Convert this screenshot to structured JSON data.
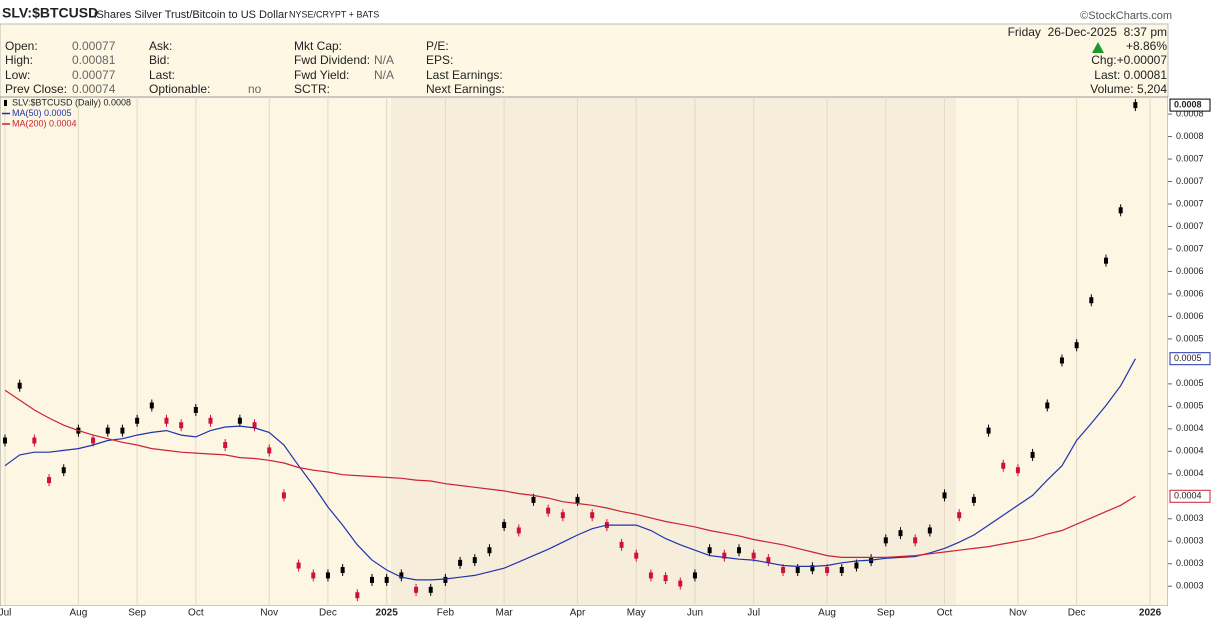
{
  "header": {
    "symbol": "SLV:$BTCUSD",
    "name": "iShares Silver Trust/Bitcoin to US Dollar",
    "exchange": "NYSE/CRYPT + BATS",
    "credit": "©StockCharts.com"
  },
  "quote": {
    "columns": [
      [
        {
          "label": "Open:",
          "value": "0.00077"
        },
        {
          "label": "High:",
          "value": "0.00081"
        },
        {
          "label": "Low:",
          "value": "0.00077"
        },
        {
          "label": "Prev Close:",
          "value": "0.00074"
        }
      ],
      [
        {
          "label": "Ask:"
        },
        {
          "label": "Bid:"
        },
        {
          "label": "Last:"
        },
        {
          "label": "Optionable:",
          "value": "no"
        }
      ],
      [
        {
          "label": "Mkt Cap:"
        },
        {
          "label": "Fwd Dividend:",
          "value": "N/A"
        },
        {
          "label": "Fwd Yield:",
          "value": "N/A"
        },
        {
          "label": "SCTR:"
        }
      ],
      [
        {
          "label": "P/E:"
        },
        {
          "label": "EPS:"
        },
        {
          "label": "Last Earnings:"
        },
        {
          "label": "Next Earnings:"
        }
      ]
    ],
    "date": "Friday  26-Dec-2025  8:37 pm",
    "change_pct": "+8.86%",
    "chg": "Chg:+0.00007",
    "last": "Last: 0.00081",
    "volume": "Volume: 5,204"
  },
  "chart_data": {
    "type": "candles",
    "categories": [
      "Jul",
      null,
      null,
      null,
      null,
      "Aug",
      null,
      null,
      null,
      "Sep",
      null,
      null,
      null,
      "Oct",
      null,
      null,
      null,
      null,
      "Nov",
      null,
      null,
      null,
      "Dec",
      null,
      null,
      null,
      "2025",
      null,
      null,
      null,
      "Feb",
      null,
      null,
      null,
      "Mar",
      null,
      null,
      null,
      null,
      "Apr",
      null,
      null,
      null,
      "May",
      null,
      null,
      null,
      "Jun",
      null,
      null,
      null,
      "Jul",
      null,
      null,
      null,
      null,
      "Aug",
      null,
      null,
      null,
      "Sep",
      null,
      null,
      null,
      "Oct",
      null,
      null,
      null,
      null,
      "Nov",
      null,
      null,
      null,
      "Dec",
      null,
      null,
      null,
      null,
      "2026"
    ],
    "series": [
      {
        "name": "SLV:$BTCUSD (Daily) 0.0008",
        "last_label": "0.0008",
        "color": "#000000",
        "down_color": "#d0103a",
        "values": [
          0.000437,
          0.000498,
          0.000437,
          0.000393,
          0.000404,
          0.000448,
          0.000437,
          0.000448,
          0.000448,
          0.000459,
          0.000476,
          0.000459,
          0.000454,
          0.000471,
          0.000459,
          0.000432,
          0.000459,
          0.000454,
          0.000426,
          0.000376,
          0.000298,
          0.000287,
          0.000287,
          0.000293,
          0.000265,
          0.000282,
          0.000282,
          0.000287,
          0.000271,
          0.000271,
          0.000282,
          0.000301,
          0.000304,
          0.000315,
          0.000343,
          0.000337,
          0.000371,
          0.000359,
          0.000354,
          0.000371,
          0.000354,
          0.000343,
          0.000321,
          0.000309,
          0.000287,
          0.000284,
          0.000278,
          0.000287,
          0.000315,
          0.000309,
          0.000315,
          0.000309,
          0.000304,
          0.000293,
          0.000293,
          0.000295,
          0.000293,
          0.000293,
          0.000298,
          0.000304,
          0.000326,
          0.000334,
          0.000326,
          0.000337,
          0.000376,
          0.000354,
          0.000371,
          0.000448,
          0.000409,
          0.000404,
          0.000421,
          0.000476,
          0.000526,
          0.000543,
          0.000593,
          0.000637,
          0.000693,
          0.00081,
          null
        ]
      },
      {
        "name": "MA(50) 0.0005",
        "last_label": "0.0005",
        "color": "#2233aa",
        "values": [
          0.000409,
          0.000421,
          0.000424,
          0.000424,
          0.000426,
          0.000428,
          0.000432,
          0.000437,
          0.000439,
          0.000443,
          0.000446,
          0.000448,
          0.000443,
          0.000441,
          0.000448,
          0.000452,
          0.000453,
          0.000451,
          0.000446,
          0.000432,
          0.000409,
          0.000387,
          0.000363,
          0.000343,
          0.000321,
          0.000304,
          0.000293,
          0.000285,
          0.000282,
          0.000282,
          0.000283,
          0.000285,
          0.000287,
          0.000291,
          0.000295,
          0.000302,
          0.000309,
          0.000316,
          0.000324,
          0.000332,
          0.000339,
          0.000343,
          0.000343,
          0.000343,
          0.000337,
          0.000328,
          0.000321,
          0.000315,
          0.000309,
          0.000307,
          0.000305,
          0.000304,
          0.000301,
          0.000298,
          0.000297,
          0.000297,
          0.000298,
          0.000301,
          0.000303,
          0.000304,
          0.000306,
          0.000307,
          0.000308,
          0.000312,
          0.000317,
          0.000324,
          0.000332,
          0.000343,
          0.000354,
          0.000365,
          0.000376,
          0.000393,
          0.000409,
          0.000437,
          0.000456,
          0.000476,
          0.000498,
          0.000528,
          null
        ]
      },
      {
        "name": "MA(200) 0.0004",
        "last_label": "0.0004",
        "color": "#cc2233",
        "values": [
          0.000493,
          0.000482,
          0.000471,
          0.000462,
          0.000454,
          0.000448,
          0.000443,
          0.000439,
          0.000435,
          0.000432,
          0.000428,
          0.000426,
          0.000424,
          0.000423,
          0.000422,
          0.000421,
          0.000418,
          0.000417,
          0.000415,
          0.000412,
          0.000407,
          0.000404,
          0.000402,
          0.000399,
          0.000398,
          0.000397,
          0.000396,
          0.000395,
          0.000393,
          0.000392,
          0.000389,
          0.000387,
          0.000385,
          0.000383,
          0.000381,
          0.000378,
          0.000376,
          0.000373,
          0.000369,
          0.000367,
          0.000365,
          0.000362,
          0.000358,
          0.000355,
          0.000351,
          0.000347,
          0.000344,
          0.000341,
          0.000337,
          0.000334,
          0.000331,
          0.000327,
          0.000324,
          0.000321,
          0.000317,
          0.000313,
          0.000309,
          0.000307,
          0.000307,
          0.000307,
          0.000307,
          0.000308,
          0.000309,
          0.000311,
          0.000313,
          0.000315,
          0.000317,
          0.000319,
          0.000322,
          0.000325,
          0.000328,
          0.000333,
          0.000337,
          0.000344,
          0.000351,
          0.000358,
          0.000365,
          0.000375,
          null
        ]
      }
    ],
    "ylim": [
      0.000253,
      0.000819
    ],
    "yticks": [
      {
        "value": 0.000275,
        "label": "0.0003"
      },
      {
        "value": 0.0003,
        "label": "0.0003"
      },
      {
        "value": 0.000325,
        "label": "0.0003"
      },
      {
        "value": 0.00035,
        "label": "0.0003"
      },
      {
        "value": 0.0004,
        "label": "0.0004"
      },
      {
        "value": 0.000425,
        "label": "0.0004"
      },
      {
        "value": 0.00045,
        "label": "0.0004"
      },
      {
        "value": 0.000475,
        "label": "0.0005"
      },
      {
        "value": 0.0005,
        "label": "0.0005"
      },
      {
        "value": 0.00055,
        "label": "0.0005"
      },
      {
        "value": 0.000575,
        "label": "0.0006"
      },
      {
        "value": 0.0006,
        "label": "0.0006"
      },
      {
        "value": 0.000625,
        "label": "0.0006"
      },
      {
        "value": 0.00065,
        "label": "0.0007"
      },
      {
        "value": 0.000675,
        "label": "0.0007"
      },
      {
        "value": 0.0007,
        "label": "0.0007"
      },
      {
        "value": 0.000725,
        "label": "0.0007"
      },
      {
        "value": 0.00075,
        "label": "0.0007"
      },
      {
        "value": 0.000775,
        "label": "0.0008"
      },
      {
        "value": 0.0008,
        "label": "0.0008"
      }
    ],
    "legend": "upper left"
  }
}
